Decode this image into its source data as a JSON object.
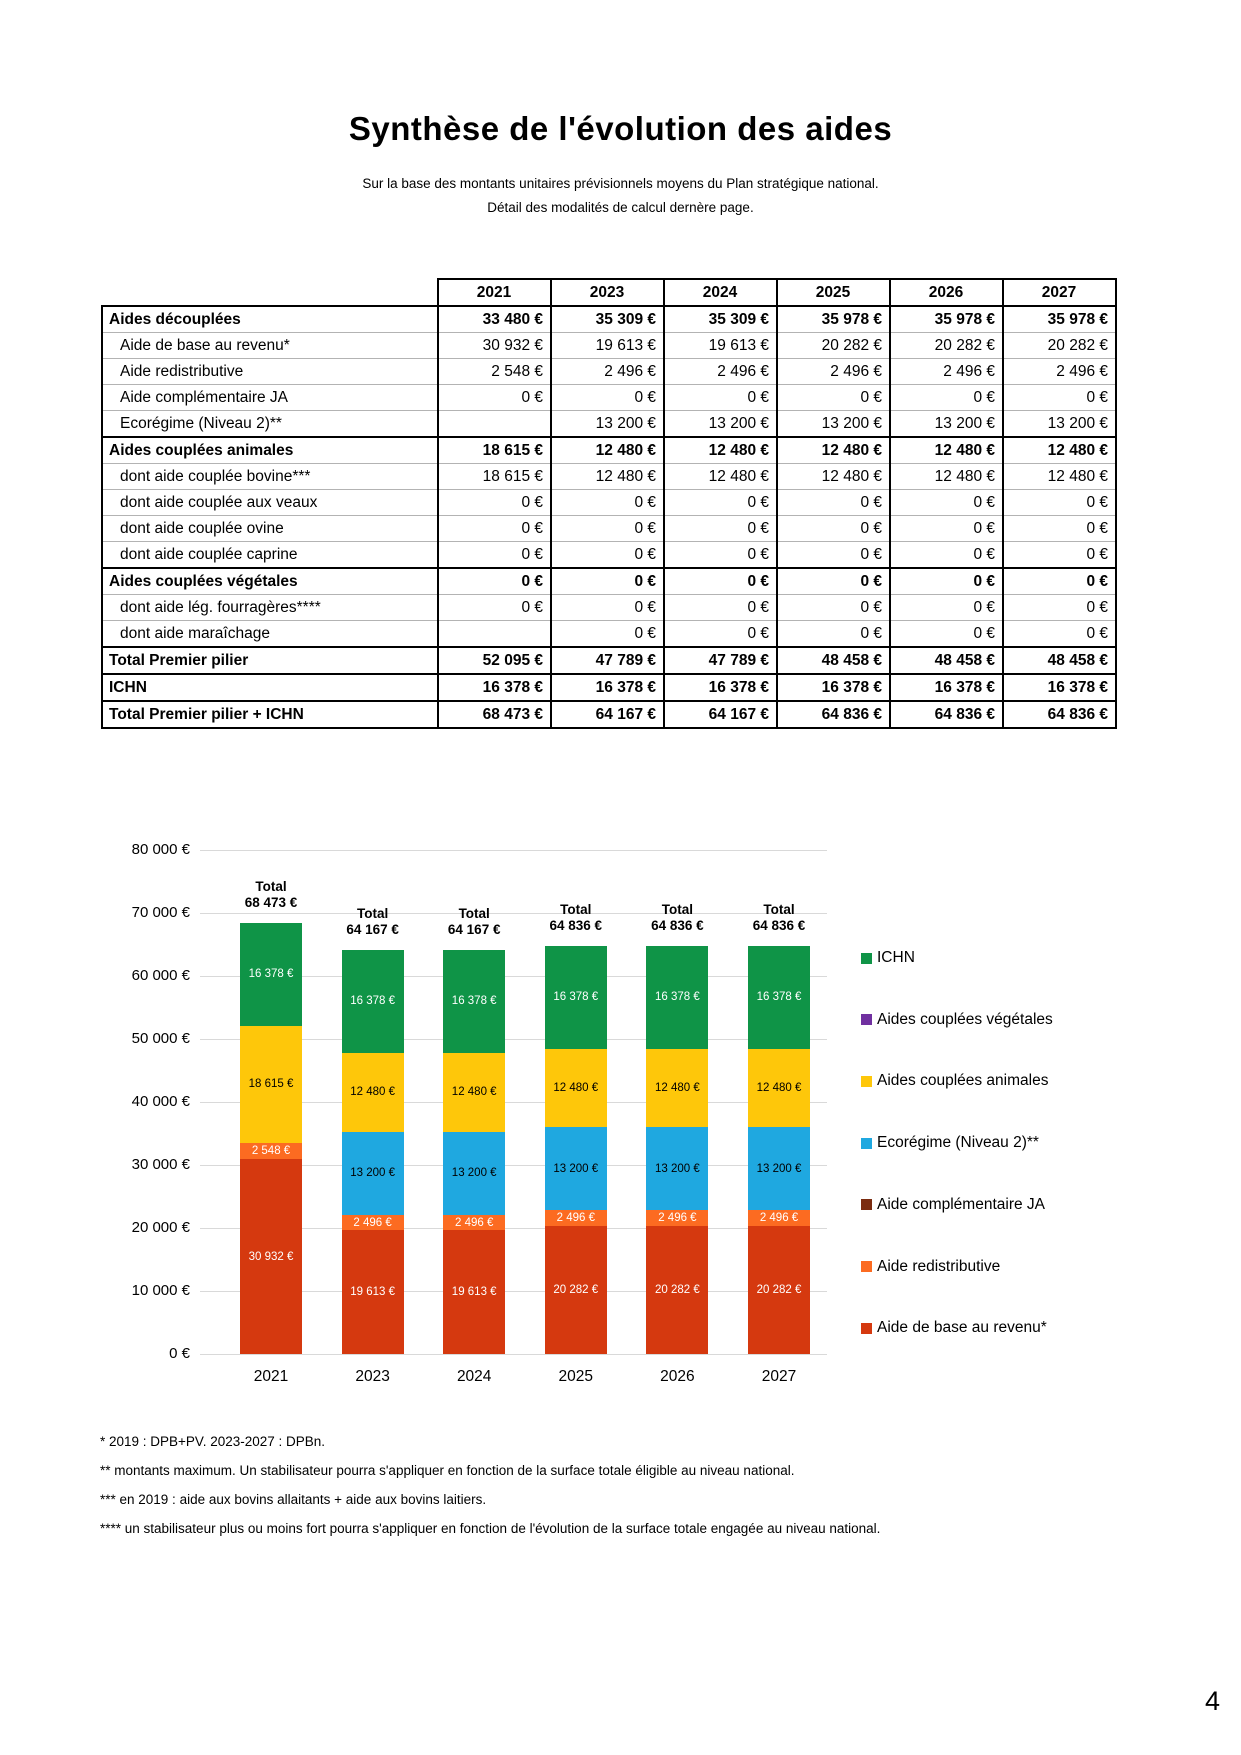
{
  "page": {
    "number": "4"
  },
  "header": {
    "title": "Synthèse de l'évolution des aides",
    "subtitle1": "Sur la base des montants unitaires prévisionnels moyens du Plan stratégique national.",
    "subtitle2": "Détail des modalités de calcul dernère page."
  },
  "table": {
    "years": [
      "2021",
      "2023",
      "2024",
      "2025",
      "2026",
      "2027"
    ],
    "rows": [
      {
        "label": "Aides découplées",
        "style": "section",
        "values": [
          "33 480 €",
          "35 309 €",
          "35 309 €",
          "35 978 €",
          "35 978 €",
          "35 978 €"
        ]
      },
      {
        "label": "Aide de base au revenu*",
        "style": "sub",
        "values": [
          "30 932 €",
          "19 613 €",
          "19 613 €",
          "20 282 €",
          "20 282 €",
          "20 282 €"
        ]
      },
      {
        "label": "Aide redistributive",
        "style": "sub",
        "values": [
          "2 548 €",
          "2 496 €",
          "2 496 €",
          "2 496 €",
          "2 496 €",
          "2 496 €"
        ]
      },
      {
        "label": "Aide complémentaire JA",
        "style": "sub",
        "values": [
          "0 €",
          "0 €",
          "0 €",
          "0 €",
          "0 €",
          "0 €"
        ]
      },
      {
        "label": "Ecorégime (Niveau 2)**",
        "style": "sub",
        "values": [
          "",
          "13 200 €",
          "13 200 €",
          "13 200 €",
          "13 200 €",
          "13 200 €"
        ]
      },
      {
        "label": "Aides couplées animales",
        "style": "section",
        "values": [
          "18 615 €",
          "12 480 €",
          "12 480 €",
          "12 480 €",
          "12 480 €",
          "12 480 €"
        ]
      },
      {
        "label": "dont aide couplée bovine***",
        "style": "sub",
        "values": [
          "18 615 €",
          "12 480 €",
          "12 480 €",
          "12 480 €",
          "12 480 €",
          "12 480 €"
        ]
      },
      {
        "label": "dont aide couplée aux veaux",
        "style": "sub",
        "values": [
          "0 €",
          "0 €",
          "0 €",
          "0 €",
          "0 €",
          "0 €"
        ]
      },
      {
        "label": "dont aide couplée ovine",
        "style": "sub",
        "values": [
          "0 €",
          "0 €",
          "0 €",
          "0 €",
          "0 €",
          "0 €"
        ]
      },
      {
        "label": "dont aide couplée caprine",
        "style": "sub",
        "values": [
          "0 €",
          "0 €",
          "0 €",
          "0 €",
          "0 €",
          "0 €"
        ]
      },
      {
        "label": "Aides couplées végétales",
        "style": "section",
        "values": [
          "0 €",
          "0 €",
          "0 €",
          "0 €",
          "0 €",
          "0 €"
        ]
      },
      {
        "label": "dont aide lég. fourragères****",
        "style": "sub",
        "values": [
          "0 €",
          "0 €",
          "0 €",
          "0 €",
          "0 €",
          "0 €"
        ]
      },
      {
        "label": "dont aide maraîchage",
        "style": "sub",
        "values": [
          "",
          "0 €",
          "0 €",
          "0 €",
          "0 €",
          "0 €"
        ]
      },
      {
        "label": "Total Premier pilier",
        "style": "section",
        "values": [
          "52 095 €",
          "47 789 €",
          "47 789 €",
          "48 458 €",
          "48 458 €",
          "48 458 €"
        ]
      },
      {
        "label": "ICHN",
        "style": "section",
        "values": [
          "16 378 €",
          "16 378 €",
          "16 378 €",
          "16 378 €",
          "16 378 €",
          "16 378 €"
        ]
      },
      {
        "label": "Total Premier pilier + ICHN",
        "style": "section",
        "values": [
          "68 473 €",
          "64 167 €",
          "64 167 €",
          "64 836 €",
          "64 836 €",
          "64 836 €"
        ]
      }
    ]
  },
  "chart_data": {
    "type": "bar",
    "stacked": true,
    "categories": [
      "2021",
      "2023",
      "2024",
      "2025",
      "2026",
      "2027"
    ],
    "series": [
      {
        "name": "Aide de base au revenu*",
        "color": "#d5390f",
        "label_color": "#ffffff",
        "values": [
          30932,
          19613,
          19613,
          20282,
          20282,
          20282
        ]
      },
      {
        "name": "Aide redistributive",
        "color": "#fc6b21",
        "label_color": "#ffffff",
        "values": [
          2548,
          2496,
          2496,
          2496,
          2496,
          2496
        ]
      },
      {
        "name": "Aide complémentaire JA",
        "color": "#7b2c10",
        "label_color": "#ffffff",
        "values": [
          0,
          0,
          0,
          0,
          0,
          0
        ]
      },
      {
        "name": "Ecorégime (Niveau 2)**",
        "color": "#1fa8e0",
        "label_color": "#000000",
        "values": [
          null,
          13200,
          13200,
          13200,
          13200,
          13200
        ]
      },
      {
        "name": "Aides couplées animales",
        "color": "#fec70a",
        "label_color": "#000000",
        "values": [
          18615,
          12480,
          12480,
          12480,
          12480,
          12480
        ]
      },
      {
        "name": "Aides couplées végétales",
        "color": "#7030a0",
        "label_color": "#ffffff",
        "values": [
          0,
          0,
          0,
          0,
          0,
          0
        ]
      },
      {
        "name": "ICHN",
        "color": "#0f9447",
        "label_color": "#ffffff",
        "values": [
          16378,
          16378,
          16378,
          16378,
          16378,
          16378
        ]
      }
    ],
    "totals": [
      "68 473 €",
      "64 167 €",
      "64 167 €",
      "64 836 €",
      "64 836 €",
      "64 836 €"
    ],
    "total_prefix": "Total",
    "ylim": [
      0,
      80000
    ],
    "ytick_step": 10000,
    "ytick_labels": [
      "0 €",
      "10 000 €",
      "20 000 €",
      "30 000 €",
      "40 000 €",
      "50 000 €",
      "60 000 €",
      "70 000 €",
      "80 000 €"
    ],
    "grid": true,
    "legend_position": "right",
    "legend": [
      {
        "label": "ICHN",
        "color": "#0f9447"
      },
      {
        "label": "Aides couplées végétales",
        "color": "#7030a0"
      },
      {
        "label": "Aides couplées animales",
        "color": "#fec70a"
      },
      {
        "label": "Ecorégime (Niveau 2)**",
        "color": "#1fa8e0"
      },
      {
        "label": "Aide complémentaire JA",
        "color": "#7b2c10"
      },
      {
        "label": "Aide redistributive",
        "color": "#fc6b21"
      },
      {
        "label": "Aide de base au revenu*",
        "color": "#d5390f"
      }
    ]
  },
  "footnotes": [
    "* 2019 : DPB+PV. 2023-2027 : DPBn.",
    "** montants maximum. Un stabilisateur pourra s'appliquer en fonction de la surface totale éligible au niveau national.",
    "*** en 2019 : aide aux bovins allaitants + aide aux bovins laitiers.",
    "**** un stabilisateur plus ou moins fort pourra s'appliquer en fonction de l'évolution de la surface totale engagée au niveau national."
  ]
}
